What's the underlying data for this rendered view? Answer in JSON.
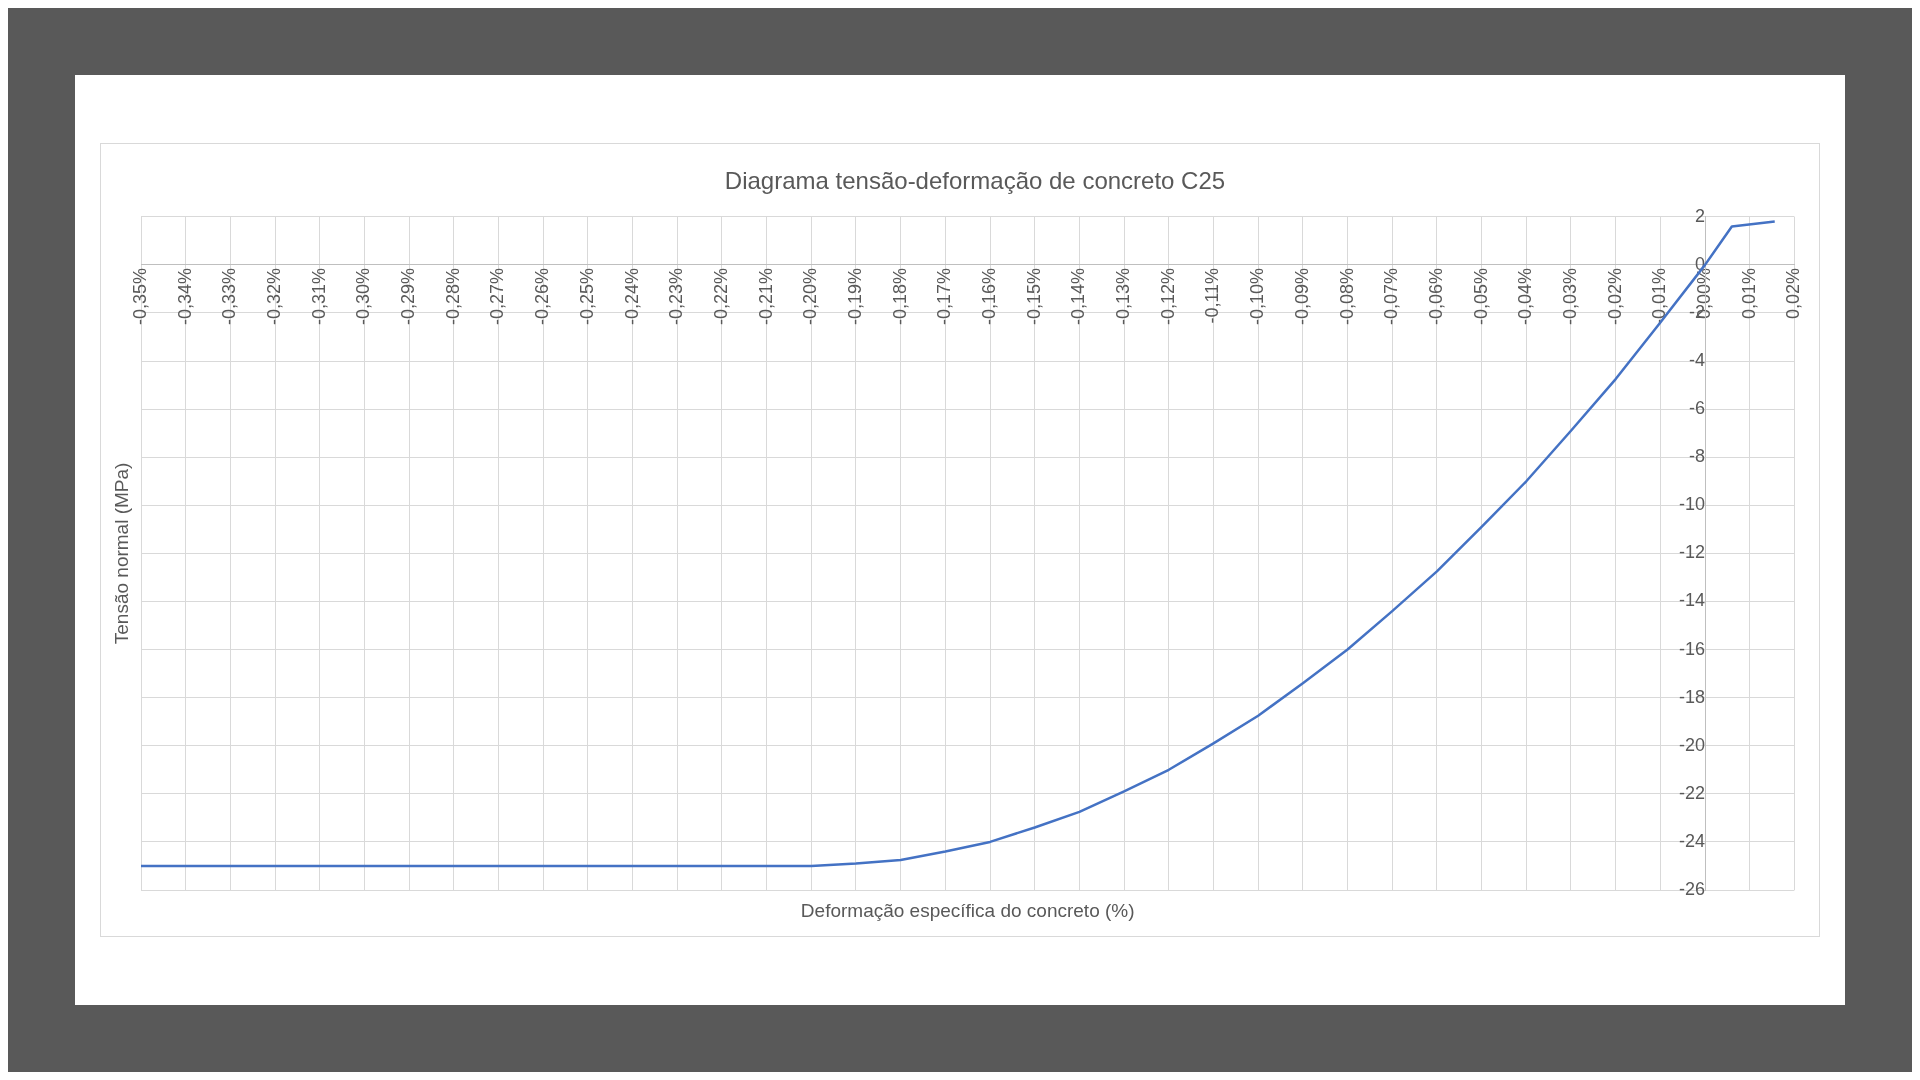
{
  "chart_data": {
    "type": "line",
    "title": "Diagrama tensão-deformação de concreto C25",
    "xlabel": "Deformação específica do concreto (%)",
    "ylabel": "Tensão normal (MPa)",
    "x": [
      -0.35,
      -0.2,
      -0.19,
      -0.18,
      -0.17,
      -0.16,
      -0.15,
      -0.14,
      -0.13,
      -0.12,
      -0.11,
      -0.1,
      -0.09,
      -0.08,
      -0.07,
      -0.06,
      -0.05,
      -0.04,
      -0.03,
      -0.02,
      -0.01,
      0,
      0.006,
      0.0156
    ],
    "series": [
      {
        "color": "#4472c4",
        "values": [
          -25,
          -25,
          -24.9,
          -24.75,
          -24.4,
          -24,
          -23.4,
          -22.75,
          -21.9,
          -21,
          -19.9,
          -18.75,
          -17.4,
          -16,
          -14.4,
          -12.75,
          -10.9,
          -9,
          -6.9,
          -4.75,
          -2.4,
          0,
          1.6,
          1.8
        ]
      }
    ],
    "xlim": [
      -0.35,
      0.02
    ],
    "xticks": [
      {
        "value": -0.35,
        "label": "-0,35%"
      },
      {
        "value": -0.34,
        "label": "-0,34%"
      },
      {
        "value": -0.33,
        "label": "-0,33%"
      },
      {
        "value": -0.32,
        "label": "-0,32%"
      },
      {
        "value": -0.31,
        "label": "-0,31%"
      },
      {
        "value": -0.3,
        "label": "-0,30%"
      },
      {
        "value": -0.29,
        "label": "-0,29%"
      },
      {
        "value": -0.28,
        "label": "-0,28%"
      },
      {
        "value": -0.27,
        "label": "-0,27%"
      },
      {
        "value": -0.26,
        "label": "-0,26%"
      },
      {
        "value": -0.25,
        "label": "-0,25%"
      },
      {
        "value": -0.24,
        "label": "-0,24%"
      },
      {
        "value": -0.23,
        "label": "-0,23%"
      },
      {
        "value": -0.22,
        "label": "-0,22%"
      },
      {
        "value": -0.21,
        "label": "-0,21%"
      },
      {
        "value": -0.2,
        "label": "-0,20%"
      },
      {
        "value": -0.19,
        "label": "-0,19%"
      },
      {
        "value": -0.18,
        "label": "-0,18%"
      },
      {
        "value": -0.17,
        "label": "-0,17%"
      },
      {
        "value": -0.16,
        "label": "-0,16%"
      },
      {
        "value": -0.15,
        "label": "-0,15%"
      },
      {
        "value": -0.14,
        "label": "-0,14%"
      },
      {
        "value": -0.13,
        "label": "-0,13%"
      },
      {
        "value": -0.12,
        "label": "-0,12%"
      },
      {
        "value": -0.11,
        "label": "-0,11%"
      },
      {
        "value": -0.1,
        "label": "-0,10%"
      },
      {
        "value": -0.09,
        "label": "-0,09%"
      },
      {
        "value": -0.08,
        "label": "-0,08%"
      },
      {
        "value": -0.07,
        "label": "-0,07%"
      },
      {
        "value": -0.06,
        "label": "-0,06%"
      },
      {
        "value": -0.05,
        "label": "-0,05%"
      },
      {
        "value": -0.04,
        "label": "-0,04%"
      },
      {
        "value": -0.03,
        "label": "-0,03%"
      },
      {
        "value": -0.02,
        "label": "-0,02%"
      },
      {
        "value": -0.01,
        "label": "-0,01%"
      },
      {
        "value": 0,
        "label": "0,00%"
      },
      {
        "value": 0.01,
        "label": "0,01%"
      },
      {
        "value": 0.02,
        "label": "0,02%"
      }
    ],
    "ylim": [
      -26,
      2
    ],
    "yticks": [
      2,
      0,
      -2,
      -4,
      -6,
      -8,
      -10,
      -12,
      -14,
      -16,
      -18,
      -20,
      -22,
      -24,
      -26
    ],
    "grid": true,
    "marker": "none",
    "line_style": "solid",
    "legend": false
  }
}
